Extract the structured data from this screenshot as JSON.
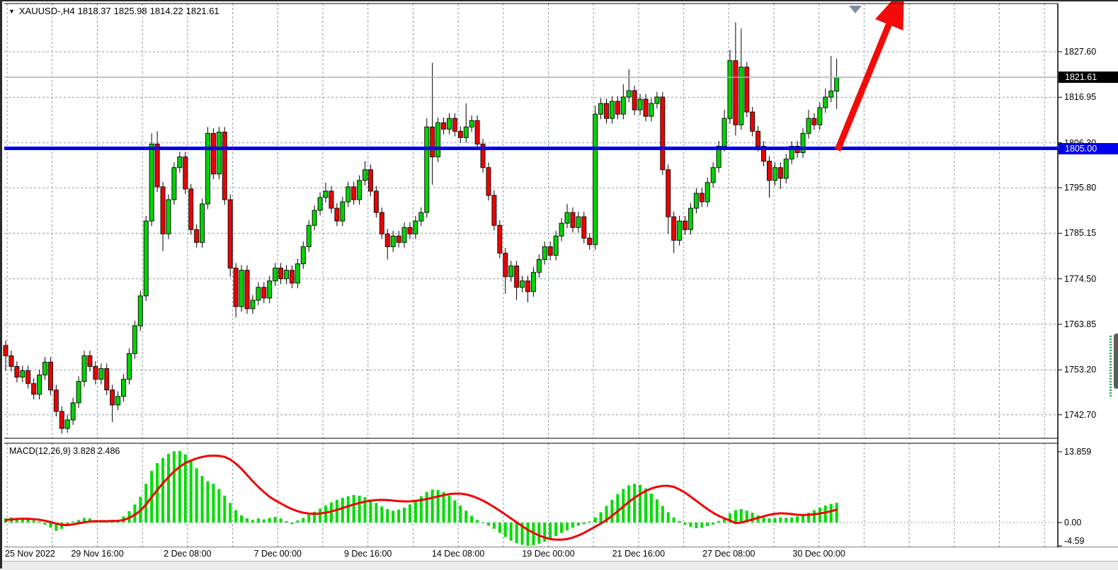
{
  "header": {
    "dropdown_icon": "▼",
    "symbol": "XAUUSD-,H4",
    "ohlc": {
      "open": "1818.37",
      "high": "1825.98",
      "low": "1814.22",
      "close": "1821.61"
    }
  },
  "price_axis": {
    "labels": [
      {
        "text": "1827.60",
        "price": 1827.6
      },
      {
        "text": "1816.95",
        "price": 1816.95
      },
      {
        "text": "1806.30",
        "price": 1806.3
      },
      {
        "text": "1795.80",
        "price": 1795.8
      },
      {
        "text": "1785.15",
        "price": 1785.15
      },
      {
        "text": "1774.50",
        "price": 1774.5
      },
      {
        "text": "1763.85",
        "price": 1763.85
      },
      {
        "text": "1753.20",
        "price": 1753.2
      },
      {
        "text": "1742.70",
        "price": 1742.7
      }
    ],
    "current_price_badge": {
      "text": "1821.61",
      "price": 1821.61,
      "bg": "#000000"
    },
    "level_badge": {
      "text": "1805.00",
      "price": 1805.0,
      "bg": "#0000f0"
    }
  },
  "time_axis": {
    "labels": [
      {
        "text": "25 Nov 2022",
        "x": 4,
        "align": "left"
      },
      {
        "text": "29 Nov 16:00",
        "x": 134.5,
        "align": "center"
      },
      {
        "text": "2 Dec 08:00",
        "x": 261.9,
        "align": "center"
      },
      {
        "text": "7 Dec 00:00",
        "x": 389.3,
        "align": "center"
      },
      {
        "text": "9 Dec 16:00",
        "x": 516.7,
        "align": "center"
      },
      {
        "text": "14 Dec 08:00",
        "x": 644.1,
        "align": "center"
      },
      {
        "text": "19 Dec 00:00",
        "x": 771.5,
        "align": "center"
      },
      {
        "text": "21 Dec 16:00",
        "x": 898.9,
        "align": "center"
      },
      {
        "text": "27 Dec 08:00",
        "x": 1026.3,
        "align": "center"
      },
      {
        "text": "30 Dec 00:00",
        "x": 1153.7,
        "align": "center"
      }
    ]
  },
  "macd_panel": {
    "label": "MACD(12,26,9) 3.828 2.486",
    "axis_labels": [
      {
        "text": "13.859",
        "value": 13.859
      },
      {
        "text": "0.00",
        "value": 0.0
      },
      {
        "text": "-4.59",
        "value": -4.59
      }
    ]
  },
  "colors": {
    "bull": "#00d400",
    "bear": "#ee0000",
    "candle_border": "#111111",
    "wick": "#000000",
    "grid": "#8b99ab",
    "level_line": "#0000f0",
    "current_price_line": "#a8b2bc",
    "arrow": "#f50a0a",
    "macd_bar": "#00dc00",
    "macd_signal": "#f00000",
    "scroll_marker": "#7d8da0",
    "axis_line": "#000000"
  },
  "chart_data": {
    "type": "candlestick",
    "symbol": "XAUUSD",
    "timeframe": "H4",
    "title": "XAUUSD-,H4 1818.37 1825.98 1814.22 1821.61",
    "visible_range": {
      "start": "25 Nov 2022 00:00",
      "end": "30 Dec 2022 20:00"
    },
    "y_axis_ticks": [
      1827.6,
      1816.95,
      1806.3,
      1795.8,
      1785.15,
      1774.5,
      1763.85,
      1753.2,
      1742.7
    ],
    "horizontal_level": 1805.0,
    "current_price": 1821.61,
    "last_bar_ohlc": [
      1818.37,
      1825.98,
      1814.22,
      1821.61
    ],
    "annotations": [
      {
        "type": "up-arrow",
        "color": "#f50a0a",
        "desc": "large red arrow from the 1805.00 level pointing up beyond the top of the chart"
      },
      {
        "type": "scroll-marker-triangle",
        "color": "#7d8da0",
        "desc": "gray down triangle at top of chart"
      }
    ],
    "candles": [
      [
        1758.9,
        1760.1,
        1753.0,
        1756.5
      ],
      [
        1756.5,
        1757.7,
        1752.8,
        1754.0
      ],
      [
        1754.0,
        1755.2,
        1750.3,
        1751.5
      ],
      [
        1751.5,
        1754.2,
        1750.3,
        1753.0
      ],
      [
        1753.0,
        1754.2,
        1748.8,
        1750.0
      ],
      [
        1750.0,
        1751.2,
        1746.3,
        1747.5
      ],
      [
        1747.5,
        1753.2,
        1746.3,
        1752.0
      ],
      [
        1752.0,
        1756.2,
        1750.8,
        1755.0
      ],
      [
        1755.0,
        1756.2,
        1747.3,
        1748.5
      ],
      [
        1748.5,
        1749.7,
        1742.3,
        1743.5
      ],
      [
        1743.5,
        1744.7,
        1738.3,
        1739.5
      ],
      [
        1739.5,
        1742.7,
        1738.5,
        1741.5
      ],
      [
        1741.5,
        1746.7,
        1740.3,
        1745.5
      ],
      [
        1745.5,
        1751.7,
        1744.3,
        1750.5
      ],
      [
        1750.5,
        1757.7,
        1749.3,
        1756.5
      ],
      [
        1756.5,
        1757.7,
        1752.8,
        1754.0
      ],
      [
        1754.0,
        1755.2,
        1749.8,
        1751.0
      ],
      [
        1751.0,
        1754.7,
        1749.8,
        1753.5
      ],
      [
        1753.5,
        1754.7,
        1747.3,
        1748.5
      ],
      [
        1748.5,
        1749.7,
        1741.0,
        1745.0
      ],
      [
        1745.0,
        1748.2,
        1743.8,
        1747.0
      ],
      [
        1747.0,
        1752.2,
        1745.8,
        1751.0
      ],
      [
        1751.0,
        1758.2,
        1749.8,
        1757.0
      ],
      [
        1757.0,
        1764.7,
        1755.8,
        1763.5
      ],
      [
        1763.5,
        1771.7,
        1762.3,
        1770.5
      ],
      [
        1770.5,
        1789.2,
        1769.3,
        1788.0
      ],
      [
        1788.0,
        1808.5,
        1786.8,
        1806.0
      ],
      [
        1806.0,
        1809.0,
        1794.8,
        1796.0
      ],
      [
        1796.0,
        1797.2,
        1781.0,
        1785.0
      ],
      [
        1785.0,
        1794.2,
        1783.8,
        1793.0
      ],
      [
        1793.0,
        1801.7,
        1791.8,
        1800.5
      ],
      [
        1800.5,
        1804.2,
        1799.3,
        1803.0
      ],
      [
        1803.0,
        1804.2,
        1794.3,
        1795.5
      ],
      [
        1795.5,
        1796.7,
        1784.8,
        1786.0
      ],
      [
        1786.0,
        1787.2,
        1781.8,
        1783.0
      ],
      [
        1783.0,
        1793.2,
        1781.8,
        1792.0
      ],
      [
        1792.0,
        1810.0,
        1790.8,
        1808.5
      ],
      [
        1808.5,
        1809.7,
        1797.8,
        1799.0
      ],
      [
        1799.0,
        1810.0,
        1797.8,
        1808.8
      ],
      [
        1808.8,
        1810.0,
        1791.8,
        1793.0
      ],
      [
        1793.0,
        1794.2,
        1775.0,
        1777.0
      ],
      [
        1777.0,
        1778.2,
        1765.5,
        1768.0
      ],
      [
        1768.0,
        1777.7,
        1766.8,
        1776.5
      ],
      [
        1776.5,
        1777.7,
        1766.3,
        1767.5
      ],
      [
        1767.5,
        1770.7,
        1766.3,
        1769.5
      ],
      [
        1769.5,
        1773.7,
        1768.3,
        1772.5
      ],
      [
        1772.5,
        1773.7,
        1768.8,
        1770.0
      ],
      [
        1770.0,
        1775.2,
        1768.8,
        1774.0
      ],
      [
        1774.0,
        1778.2,
        1772.8,
        1777.0
      ],
      [
        1777.0,
        1778.2,
        1773.3,
        1774.5
      ],
      [
        1774.5,
        1777.7,
        1773.3,
        1776.5
      ],
      [
        1776.5,
        1777.7,
        1772.3,
        1773.5
      ],
      [
        1773.5,
        1779.2,
        1772.3,
        1778.0
      ],
      [
        1778.0,
        1783.2,
        1776.8,
        1782.0
      ],
      [
        1782.0,
        1788.2,
        1780.8,
        1787.0
      ],
      [
        1787.0,
        1791.7,
        1785.8,
        1790.5
      ],
      [
        1790.5,
        1794.7,
        1789.3,
        1793.5
      ],
      [
        1793.5,
        1797.0,
        1792.3,
        1795.0
      ],
      [
        1795.0,
        1796.2,
        1789.8,
        1791.0
      ],
      [
        1791.0,
        1792.2,
        1786.8,
        1788.0
      ],
      [
        1788.0,
        1793.7,
        1786.8,
        1792.5
      ],
      [
        1792.5,
        1797.2,
        1791.3,
        1796.0
      ],
      [
        1796.0,
        1797.2,
        1791.8,
        1793.0
      ],
      [
        1793.0,
        1798.7,
        1791.8,
        1797.5
      ],
      [
        1797.5,
        1802.0,
        1796.3,
        1800.0
      ],
      [
        1800.0,
        1801.2,
        1793.8,
        1795.0
      ],
      [
        1795.0,
        1796.2,
        1788.8,
        1790.0
      ],
      [
        1790.0,
        1791.2,
        1783.8,
        1785.0
      ],
      [
        1785.0,
        1786.2,
        1779.0,
        1782.0
      ],
      [
        1782.0,
        1785.7,
        1780.8,
        1784.5
      ],
      [
        1784.5,
        1785.7,
        1781.8,
        1783.0
      ],
      [
        1783.0,
        1787.7,
        1781.8,
        1786.5
      ],
      [
        1786.5,
        1787.7,
        1783.8,
        1785.0
      ],
      [
        1785.0,
        1789.2,
        1783.8,
        1788.0
      ],
      [
        1788.0,
        1791.2,
        1786.8,
        1790.0
      ],
      [
        1790.0,
        1812.0,
        1788.8,
        1810.0
      ],
      [
        1810.0,
        1825.0,
        1796.5,
        1803.0
      ],
      [
        1803.0,
        1812.2,
        1801.8,
        1811.0
      ],
      [
        1811.0,
        1812.2,
        1808.3,
        1809.5
      ],
      [
        1809.5,
        1813.2,
        1808.3,
        1812.0
      ],
      [
        1812.0,
        1813.2,
        1807.8,
        1809.0
      ],
      [
        1809.0,
        1810.2,
        1806.3,
        1807.5
      ],
      [
        1807.5,
        1815.5,
        1806.3,
        1810.0
      ],
      [
        1810.0,
        1812.7,
        1808.8,
        1811.5
      ],
      [
        1811.5,
        1812.7,
        1804.8,
        1806.0
      ],
      [
        1806.0,
        1807.2,
        1799.3,
        1800.5
      ],
      [
        1800.5,
        1801.7,
        1792.8,
        1794.0
      ],
      [
        1794.0,
        1795.2,
        1785.8,
        1787.0
      ],
      [
        1787.0,
        1788.2,
        1779.3,
        1780.5
      ],
      [
        1780.5,
        1781.7,
        1771.0,
        1775.0
      ],
      [
        1775.0,
        1778.7,
        1773.8,
        1777.5
      ],
      [
        1777.5,
        1778.7,
        1769.5,
        1772.5
      ],
      [
        1772.5,
        1775.2,
        1771.3,
        1774.0
      ],
      [
        1774.0,
        1775.2,
        1769.0,
        1771.5
      ],
      [
        1771.5,
        1777.2,
        1770.3,
        1776.0
      ],
      [
        1776.0,
        1780.2,
        1774.8,
        1779.0
      ],
      [
        1779.0,
        1783.2,
        1777.8,
        1782.0
      ],
      [
        1782.0,
        1783.2,
        1778.8,
        1780.0
      ],
      [
        1780.0,
        1785.7,
        1778.8,
        1784.5
      ],
      [
        1784.5,
        1788.7,
        1783.3,
        1787.5
      ],
      [
        1787.5,
        1792.0,
        1786.3,
        1790.0
      ],
      [
        1790.0,
        1791.2,
        1785.3,
        1786.5
      ],
      [
        1786.5,
        1790.2,
        1785.3,
        1789.0
      ],
      [
        1789.0,
        1790.2,
        1782.8,
        1784.0
      ],
      [
        1784.0,
        1785.2,
        1781.3,
        1782.5
      ],
      [
        1782.5,
        1815.0,
        1781.3,
        1813.0
      ],
      [
        1813.0,
        1816.7,
        1811.8,
        1815.5
      ],
      [
        1815.5,
        1816.7,
        1810.8,
        1812.0
      ],
      [
        1812.0,
        1817.2,
        1810.8,
        1816.0
      ],
      [
        1816.0,
        1817.2,
        1811.8,
        1813.0
      ],
      [
        1813.0,
        1820.0,
        1811.8,
        1817.0
      ],
      [
        1817.0,
        1823.5,
        1815.8,
        1818.5
      ],
      [
        1818.5,
        1819.7,
        1812.8,
        1814.0
      ],
      [
        1814.0,
        1817.7,
        1812.8,
        1816.5
      ],
      [
        1816.5,
        1817.7,
        1811.3,
        1812.5
      ],
      [
        1812.5,
        1816.7,
        1811.3,
        1815.5
      ],
      [
        1815.5,
        1818.2,
        1814.3,
        1817.0
      ],
      [
        1817.0,
        1818.2,
        1798.8,
        1800.0
      ],
      [
        1800.0,
        1801.2,
        1785.0,
        1789.0
      ],
      [
        1789.0,
        1790.2,
        1780.5,
        1783.5
      ],
      [
        1783.5,
        1789.2,
        1782.3,
        1788.0
      ],
      [
        1788.0,
        1789.2,
        1784.8,
        1786.0
      ],
      [
        1786.0,
        1792.2,
        1784.8,
        1791.0
      ],
      [
        1791.0,
        1795.7,
        1789.8,
        1794.5
      ],
      [
        1794.5,
        1795.7,
        1791.3,
        1792.5
      ],
      [
        1792.5,
        1798.2,
        1791.3,
        1797.0
      ],
      [
        1797.0,
        1801.7,
        1795.8,
        1800.5
      ],
      [
        1800.5,
        1806.7,
        1799.3,
        1805.5
      ],
      [
        1805.5,
        1814.0,
        1804.3,
        1812.0
      ],
      [
        1812.0,
        1828.0,
        1810.8,
        1825.5
      ],
      [
        1825.5,
        1834.5,
        1808.0,
        1810.5
      ],
      [
        1810.5,
        1833.0,
        1809.3,
        1824.0
      ],
      [
        1824.0,
        1825.2,
        1812.3,
        1813.5
      ],
      [
        1813.5,
        1814.7,
        1807.8,
        1809.0
      ],
      [
        1809.0,
        1810.2,
        1804.3,
        1805.5
      ],
      [
        1805.5,
        1806.7,
        1800.8,
        1802.0
      ],
      [
        1802.0,
        1803.2,
        1793.5,
        1797.5
      ],
      [
        1797.5,
        1801.7,
        1796.3,
        1800.5
      ],
      [
        1800.5,
        1801.7,
        1795.5,
        1798.0
      ],
      [
        1798.0,
        1803.7,
        1796.8,
        1802.5
      ],
      [
        1802.5,
        1806.7,
        1801.3,
        1805.5
      ],
      [
        1805.5,
        1806.7,
        1802.8,
        1804.0
      ],
      [
        1804.0,
        1809.7,
        1802.8,
        1808.5
      ],
      [
        1808.5,
        1814.0,
        1807.3,
        1812.0
      ],
      [
        1812.0,
        1813.2,
        1809.3,
        1810.5
      ],
      [
        1810.5,
        1815.7,
        1809.3,
        1814.5
      ],
      [
        1814.5,
        1819.0,
        1813.3,
        1817.0
      ],
      [
        1817.0,
        1826.6,
        1815.8,
        1818.4
      ],
      [
        1818.37,
        1825.98,
        1814.22,
        1821.61
      ]
    ],
    "macd": {
      "label": "MACD(12,26,9)",
      "macd_value": 3.828,
      "signal_value": 2.486,
      "axis": {
        "max": 13.859,
        "zero": 0.0,
        "min": -4.59
      },
      "histogram": [
        0.8,
        1.0,
        0.7,
        0.9,
        0.6,
        0.4,
        0.2,
        -0.4,
        -1.0,
        -1.6,
        -1.2,
        -0.6,
        0.2,
        0.5,
        0.9,
        0.8,
        0.5,
        0.3,
        0.4,
        0.3,
        0.5,
        1.2,
        2.2,
        3.5,
        5.0,
        7.5,
        10.0,
        11.5,
        12.5,
        13.3,
        13.8,
        13.86,
        13.2,
        12.0,
        10.5,
        9.0,
        8.0,
        7.5,
        6.5,
        5.2,
        3.8,
        2.4,
        1.4,
        0.8,
        0.5,
        0.8,
        0.6,
        0.9,
        1.1,
        0.8,
        0.3,
        -0.3,
        0.4,
        0.9,
        1.5,
        2.1,
        2.7,
        3.3,
        3.9,
        4.4,
        4.8,
        5.1,
        5.35,
        5.2,
        4.9,
        4.4,
        3.8,
        3.1,
        2.6,
        2.3,
        2.5,
        2.9,
        3.5,
        4.3,
        5.1,
        5.9,
        6.4,
        6.3,
        5.9,
        5.2,
        4.3,
        3.3,
        2.3,
        1.3,
        0.5,
        -0.1,
        -0.6,
        -1.2,
        -2.0,
        -2.8,
        -3.5,
        -4.0,
        -4.3,
        -4.5,
        -4.4,
        -4.1,
        -3.7,
        -3.2,
        -2.6,
        -2.0,
        -1.5,
        -1.0,
        -0.6,
        -0.3,
        0.2,
        1.0,
        2.0,
        3.2,
        4.4,
        5.5,
        6.5,
        7.2,
        7.5,
        7.3,
        6.6,
        5.6,
        4.5,
        3.2,
        2.0,
        1.0,
        0.3,
        -0.4,
        -0.8,
        -1.1,
        -1.0,
        -0.7,
        -0.4,
        0.3,
        1.0,
        1.8,
        2.4,
        2.6,
        2.3,
        1.9,
        1.4,
        1.0,
        0.8,
        0.9,
        1.0,
        0.9,
        1.0,
        1.2,
        1.5,
        1.9,
        2.4,
        2.9,
        3.3,
        3.6,
        3.828
      ],
      "signal": [
        0.5,
        0.6,
        0.7,
        0.75,
        0.72,
        0.65,
        0.55,
        0.35,
        0.1,
        -0.2,
        -0.45,
        -0.5,
        -0.35,
        -0.15,
        0.05,
        0.2,
        0.25,
        0.28,
        0.28,
        0.3,
        0.32,
        0.5,
        0.9,
        1.5,
        2.3,
        3.5,
        4.9,
        6.3,
        7.6,
        8.8,
        9.9,
        10.8,
        11.5,
        12.0,
        12.4,
        12.7,
        12.9,
        12.95,
        12.9,
        12.7,
        12.2,
        11.4,
        10.4,
        9.2,
        8.0,
        6.9,
        5.9,
        5.0,
        4.3,
        3.7,
        3.1,
        2.6,
        2.2,
        1.9,
        1.75,
        1.7,
        1.75,
        1.9,
        2.15,
        2.45,
        2.8,
        3.15,
        3.5,
        3.8,
        4.05,
        4.25,
        4.35,
        4.4,
        4.35,
        4.25,
        4.15,
        4.1,
        4.1,
        4.2,
        4.35,
        4.55,
        4.8,
        5.05,
        5.3,
        5.5,
        5.6,
        5.6,
        5.45,
        5.15,
        4.75,
        4.25,
        3.65,
        3.0,
        2.3,
        1.55,
        0.8,
        0.05,
        -0.7,
        -1.4,
        -2.0,
        -2.5,
        -2.9,
        -3.2,
        -3.3,
        -3.3,
        -3.2,
        -2.9,
        -2.5,
        -2.0,
        -1.4,
        -0.8,
        -0.2,
        0.5,
        1.3,
        2.2,
        3.1,
        4.0,
        4.8,
        5.5,
        6.1,
        6.6,
        6.9,
        7.1,
        7.1,
        6.9,
        6.4,
        5.8,
        5.0,
        4.2,
        3.4,
        2.6,
        1.9,
        1.3,
        0.8,
        0.4,
        -0.1,
        0.0,
        0.3,
        0.6,
        0.9,
        1.2,
        1.5,
        1.7,
        1.8,
        1.75,
        1.65,
        1.5,
        1.45,
        1.5,
        1.6,
        1.75,
        1.95,
        2.2,
        2.486
      ]
    }
  }
}
